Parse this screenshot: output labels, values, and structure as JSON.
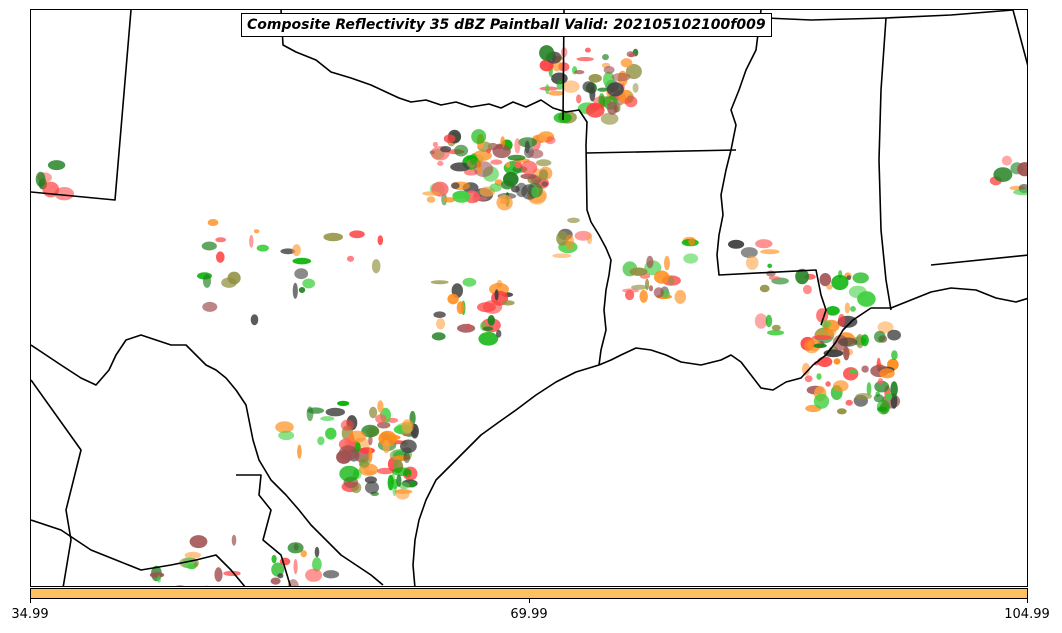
{
  "title": "Composite Reflectivity 35 dBZ Paintball Valid: 202105102100f009",
  "colors": {
    "colorbar_fill": "#ffc060",
    "member_palette": [
      "#ff4040",
      "#00b000",
      "#ff8c1a",
      "#a05050",
      "#40d040",
      "#909040",
      "#404040",
      "#ffa040",
      "#208020",
      "#ff6060"
    ]
  },
  "map": {
    "type": "paintball reflectivity map",
    "region": "Texas / Louisiana / Gulf Coast",
    "borders": "state and country boundaries, coastline"
  },
  "colorbar": {
    "ticks": [
      "34.99",
      "69.99",
      "104.99"
    ]
  }
}
